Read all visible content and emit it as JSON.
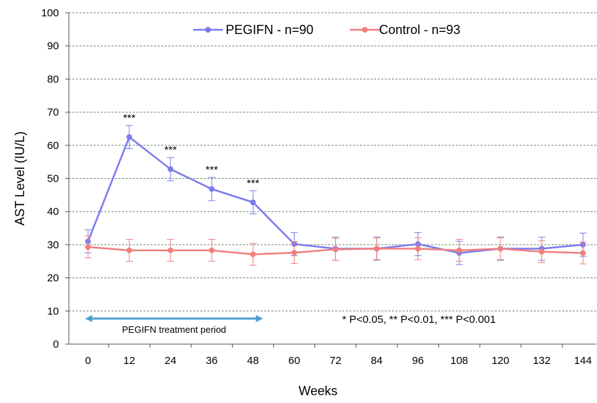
{
  "chart_data": {
    "type": "line",
    "title": "",
    "xlabel": "Weeks",
    "ylabel": "AST Level (IU/L)",
    "x": [
      0,
      12,
      24,
      36,
      48,
      60,
      72,
      84,
      96,
      108,
      120,
      132,
      144
    ],
    "xlim": [
      0,
      144
    ],
    "ylim": [
      0,
      100
    ],
    "yticks": [
      0,
      10,
      20,
      30,
      40,
      50,
      60,
      70,
      80,
      90,
      100
    ],
    "grid": "horizontal dashed",
    "legend_position": "top",
    "series": [
      {
        "name": "PEGIFN - n=90",
        "color": "#7b7bef",
        "values": [
          31,
          62.5,
          52.8,
          46.8,
          42.8,
          30.2,
          28.8,
          28.8,
          30.2,
          27.5,
          28.8,
          28.8,
          30
        ],
        "error": [
          3.5,
          3.5,
          3.5,
          3.5,
          3.5,
          3.5,
          3.5,
          3.5,
          3.5,
          3.5,
          3.5,
          3.5,
          3.5
        ]
      },
      {
        "name": "Control - n=93",
        "color": "#f07f7f",
        "values": [
          29.3,
          28.3,
          28.3,
          28.3,
          27.1,
          27.6,
          28.6,
          28.8,
          28.8,
          28.3,
          28.8,
          27.9,
          27.5
        ],
        "error": [
          3.3,
          3.3,
          3.3,
          3.3,
          3.3,
          3.3,
          3.3,
          3.3,
          3.3,
          3.3,
          3.3,
          3.3,
          3.3
        ]
      }
    ],
    "significance": [
      {
        "x": 12,
        "label": "***"
      },
      {
        "x": 24,
        "label": "***"
      },
      {
        "x": 36,
        "label": "***"
      },
      {
        "x": 48,
        "label": "***"
      }
    ],
    "annotations": {
      "pvalue_note": "* P<0.05, ** P<0.01, *** P<0.001",
      "treatment_period_label": "PEGIFN treatment period",
      "treatment_period_range": [
        0,
        48
      ],
      "treatment_period_color": "#4f9fd3"
    }
  }
}
